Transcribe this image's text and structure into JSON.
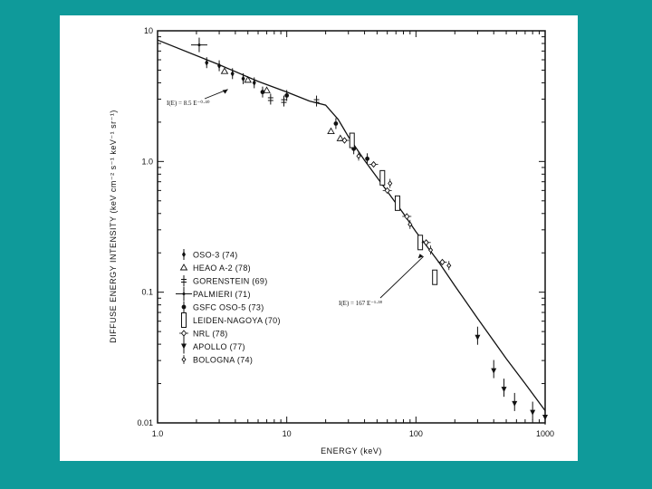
{
  "chart_data": {
    "type": "scatter",
    "title": "",
    "xlabel": "ENERGY (keV)",
    "ylabel": "DIFFUSE ENERGY INTENSITY (keV cm⁻² s⁻¹ keV⁻¹ sr⁻¹)",
    "xscale": "log",
    "yscale": "log",
    "xlim": [
      1.0,
      1000
    ],
    "ylim": [
      0.01,
      10
    ],
    "x_ticks": [
      "1.0",
      "10",
      "100",
      "1000"
    ],
    "y_ticks": [
      "10",
      "1.0",
      "0.1",
      "0.01"
    ],
    "grid": false,
    "legend_position": "lower-left",
    "annotations": [
      {
        "text": "I(E) = 8.5 E⁻⁰·⁴⁰",
        "x": 3.5,
        "y": 3.8
      },
      {
        "text": "I(E) = 167 E⁻¹·³⁸",
        "x": 120,
        "y": 0.2
      }
    ],
    "model_curve": [
      [
        1.0,
        8.5
      ],
      [
        3,
        5.5
      ],
      [
        6,
        4.1
      ],
      [
        10,
        3.4
      ],
      [
        15,
        2.9
      ],
      [
        20,
        2.7
      ],
      [
        25,
        2.1
      ],
      [
        30,
        1.55
      ],
      [
        40,
        1.02
      ],
      [
        60,
        0.59
      ],
      [
        80,
        0.4
      ],
      [
        100,
        0.29
      ],
      [
        150,
        0.17
      ],
      [
        200,
        0.112
      ],
      [
        300,
        0.063
      ],
      [
        500,
        0.031
      ],
      [
        700,
        0.02
      ],
      [
        1000,
        0.0124
      ]
    ],
    "series": [
      {
        "name": "OSO-3 (74)",
        "marker": "diamond-filled-bar",
        "points": [
          [
            2.4,
            5.7
          ],
          [
            3.0,
            5.4
          ],
          [
            3.8,
            4.7
          ],
          [
            4.6,
            4.3
          ],
          [
            5.6,
            4.0
          ]
        ]
      },
      {
        "name": "HEAO A-2 (78)",
        "marker": "triangle-open",
        "points": [
          [
            3.3,
            4.9
          ],
          [
            5.0,
            4.2
          ],
          [
            7.0,
            3.5
          ],
          [
            22,
            1.7
          ],
          [
            26,
            1.5
          ]
        ]
      },
      {
        "name": "GORENSTEIN (69)",
        "marker": "cross-bar",
        "points": [
          [
            7.5,
            3.0
          ],
          [
            9.5,
            2.9
          ],
          [
            17,
            2.9
          ]
        ]
      },
      {
        "name": "PALMIERI (71)",
        "marker": "cross-large",
        "points": [
          [
            2.1,
            7.8
          ]
        ]
      },
      {
        "name": "GSFC OSO-5 (73)",
        "marker": "dot-bar",
        "points": [
          [
            6.5,
            3.4
          ],
          [
            10,
            3.2
          ],
          [
            24,
            1.95
          ],
          [
            33,
            1.25
          ],
          [
            42,
            1.05
          ]
        ]
      },
      {
        "name": "LEIDEN-NAGOYA (70)",
        "marker": "rect-open",
        "points": [
          [
            32,
            1.45
          ],
          [
            55,
            0.75
          ],
          [
            72,
            0.48
          ],
          [
            108,
            0.24
          ],
          [
            140,
            0.13
          ]
        ]
      },
      {
        "name": "NRL (78)",
        "marker": "diamond-open",
        "points": [
          [
            28,
            1.45
          ],
          [
            47,
            0.95
          ],
          [
            60,
            0.6
          ],
          [
            85,
            0.38
          ],
          [
            120,
            0.24
          ],
          [
            160,
            0.17
          ]
        ]
      },
      {
        "name": "APOLLO (77)",
        "marker": "triangle-down-filled",
        "points": [
          [
            300,
            0.045
          ],
          [
            400,
            0.025
          ],
          [
            480,
            0.018
          ],
          [
            580,
            0.014
          ],
          [
            800,
            0.012
          ],
          [
            1000,
            0.011
          ]
        ]
      },
      {
        "name": "BOLOGNA (74)",
        "marker": "diamond-small",
        "points": [
          [
            36,
            1.1
          ],
          [
            63,
            0.68
          ],
          [
            90,
            0.33
          ],
          [
            130,
            0.21
          ],
          [
            180,
            0.16
          ]
        ]
      }
    ]
  }
}
